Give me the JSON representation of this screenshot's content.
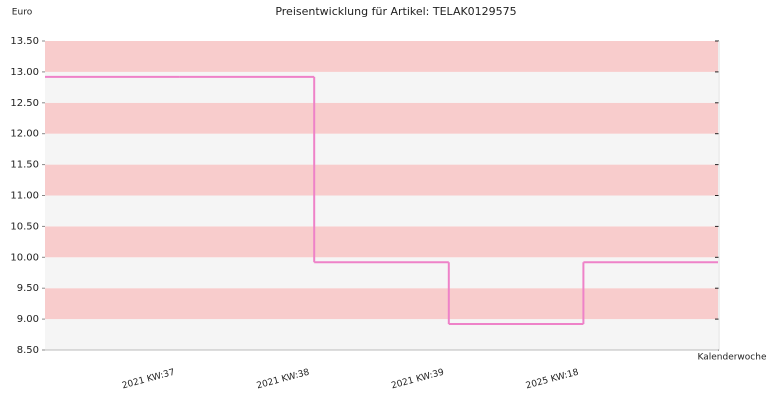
{
  "chart_data": {
    "type": "step",
    "title": "Preisentwicklung für Artikel: TELAK0129575",
    "y_label": "Euro",
    "x_label": "Kalenderwoche",
    "categories": [
      "2021 KW:37",
      "2021 KW:38",
      "2021 KW:39",
      "2025 KW:18"
    ],
    "values": [
      12.92,
      9.92,
      8.92,
      9.92
    ],
    "color": "#ee82c8",
    "band_colors": [
      "#f8cccc",
      "#f5f5f5"
    ],
    "ylim": [
      8.5,
      13.5
    ],
    "yticks": [
      {
        "value": 8.5,
        "label": "8.50"
      },
      {
        "value": 9,
        "label": "9.00"
      },
      {
        "value": 9.5,
        "label": "9.50"
      },
      {
        "value": 10,
        "label": "10.00"
      },
      {
        "value": 10.5,
        "label": "10.50"
      },
      {
        "value": 11,
        "label": "11.00"
      },
      {
        "value": 11.5,
        "label": "11.50"
      },
      {
        "value": 12,
        "label": "12.00"
      },
      {
        "value": 12.5,
        "label": "12.50"
      },
      {
        "value": 13,
        "label": "13.00"
      },
      {
        "value": 13.5,
        "label": "13.50"
      }
    ]
  }
}
